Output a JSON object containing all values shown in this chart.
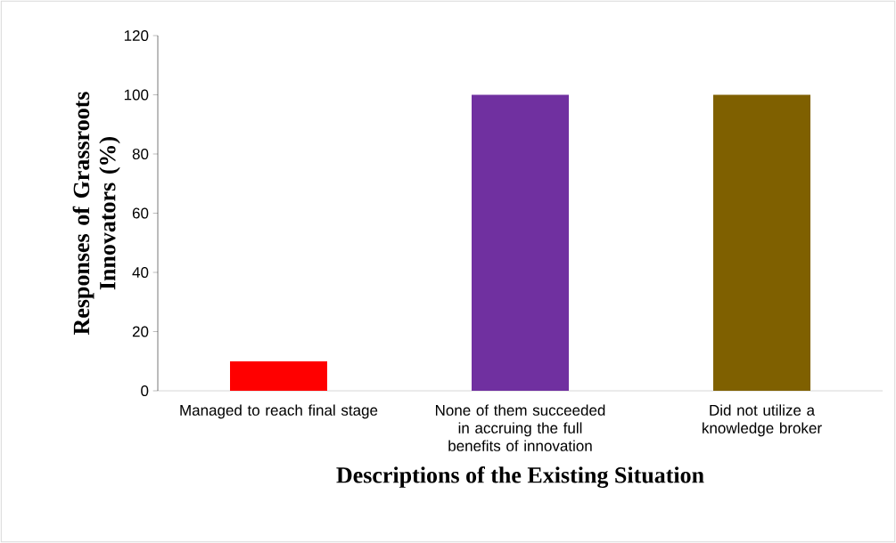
{
  "chart_data": {
    "type": "bar",
    "xlabel": "Descriptions of the Existing Situation",
    "ylabel": "Responses of Grassroots Innovators (%)",
    "categories": [
      "Managed to reach final stage",
      "None of them succeeded in accruing the full benefits of innovation",
      "Did not utilize a knowledge broker"
    ],
    "values": [
      10,
      100,
      100
    ],
    "colors": [
      "#ff0000",
      "#7030a0",
      "#7f6000"
    ],
    "ylim": [
      0,
      120
    ],
    "yticks": [
      0,
      20,
      40,
      60,
      80,
      100,
      120
    ]
  }
}
